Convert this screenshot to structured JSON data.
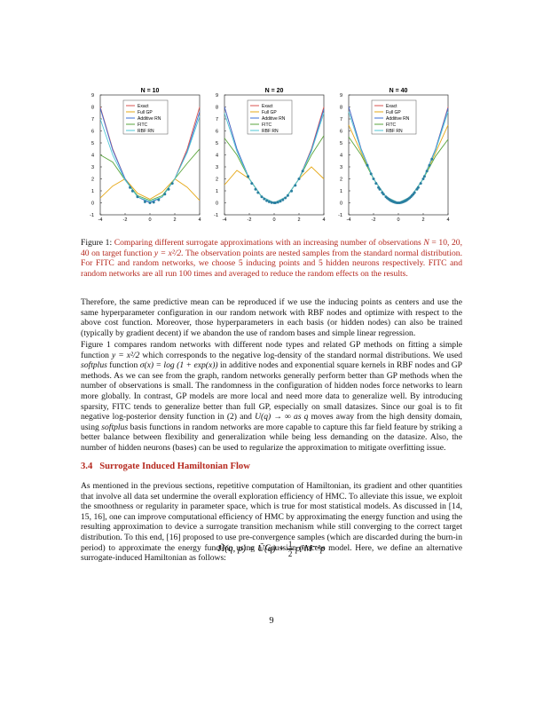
{
  "figure": {
    "panels": [
      {
        "title": "N = 10"
      },
      {
        "title": "N = 20"
      },
      {
        "title": "N = 40"
      }
    ],
    "xticks": [
      "-4",
      "-2",
      "0",
      "2",
      "4"
    ],
    "yticks": [
      "-1",
      "0",
      "1",
      "2",
      "3",
      "4",
      "5",
      "6",
      "7",
      "8",
      "9"
    ],
    "legend": [
      "Exact",
      "Full GP",
      "Additive RN",
      "FITC",
      "RBF RN"
    ],
    "colors": {
      "Exact": "#d9534f",
      "Full GP": "#e6a817",
      "Additive RN": "#3b6fd6",
      "FITC": "#5aa53c",
      "RBF RN": "#4fc7d4",
      "points": "#2a7fa0"
    }
  },
  "chart_data": [
    {
      "type": "line",
      "title": "N = 10",
      "xlim": [
        -4,
        4
      ],
      "ylim": [
        -1,
        9
      ],
      "series": [
        {
          "name": "Exact",
          "x": [
            -4,
            -3,
            -2,
            -1,
            0,
            1,
            2,
            3,
            4
          ],
          "y": [
            8.0,
            4.5,
            2.0,
            0.5,
            0.0,
            0.5,
            2.0,
            4.5,
            8.0
          ]
        },
        {
          "name": "Full GP",
          "x": [
            -4,
            -3,
            -2,
            -1,
            0,
            1,
            2,
            3,
            4
          ],
          "y": [
            0.4,
            1.4,
            2.0,
            0.8,
            0.3,
            0.9,
            2.0,
            1.3,
            0.2
          ]
        },
        {
          "name": "Additive RN",
          "x": [
            -4,
            -3,
            -2,
            -1,
            0,
            1,
            2,
            3,
            4
          ],
          "y": [
            7.9,
            4.4,
            2.0,
            0.5,
            0.0,
            0.5,
            2.0,
            4.3,
            7.6
          ]
        },
        {
          "name": "FITC",
          "x": [
            -4,
            -3,
            -2,
            -1,
            0,
            1,
            2,
            3,
            4
          ],
          "y": [
            4.0,
            3.4,
            1.9,
            0.6,
            0.2,
            0.6,
            2.0,
            3.3,
            4.5
          ]
        },
        {
          "name": "RBF RN",
          "x": [
            -4,
            -3,
            -2,
            -1,
            0,
            1,
            2,
            3,
            4
          ],
          "y": [
            7.0,
            4.0,
            1.9,
            0.5,
            0.1,
            0.5,
            2.0,
            4.2,
            7.2
          ]
        }
      ],
      "points": {
        "x": [
          -1.6,
          -1.4,
          -1.0,
          -0.4,
          0.0,
          0.3,
          0.7,
          1.2,
          1.5,
          1.8
        ],
        "y": [
          1.28,
          0.98,
          0.5,
          0.08,
          0.0,
          0.05,
          0.25,
          0.72,
          1.13,
          1.62
        ]
      }
    },
    {
      "type": "line",
      "title": "N = 20",
      "xlim": [
        -4,
        4
      ],
      "ylim": [
        -1,
        9
      ],
      "series": [
        {
          "name": "Exact",
          "x": [
            -4,
            -3,
            -2,
            -1,
            0,
            1,
            2,
            3,
            4
          ],
          "y": [
            8.0,
            4.5,
            2.0,
            0.5,
            0.0,
            0.5,
            2.0,
            4.5,
            8.0
          ]
        },
        {
          "name": "Full GP",
          "x": [
            -4,
            -3,
            -2,
            -1,
            0,
            1,
            2,
            3,
            4
          ],
          "y": [
            1.5,
            2.7,
            2.0,
            0.5,
            0.0,
            0.5,
            2.0,
            3.0,
            2.0
          ]
        },
        {
          "name": "Additive RN",
          "x": [
            -4,
            -3,
            -2,
            -1,
            0,
            1,
            2,
            3,
            4
          ],
          "y": [
            8.0,
            4.5,
            2.0,
            0.5,
            0.0,
            0.5,
            2.0,
            4.4,
            7.8
          ]
        },
        {
          "name": "FITC",
          "x": [
            -4,
            -3,
            -2,
            -1,
            0,
            1,
            2,
            3,
            4
          ],
          "y": [
            5.4,
            4.0,
            2.0,
            0.5,
            0.0,
            0.5,
            2.0,
            4.0,
            5.6
          ]
        },
        {
          "name": "RBF RN",
          "x": [
            -4,
            -3,
            -2,
            -1,
            0,
            1,
            2,
            3,
            4
          ],
          "y": [
            7.5,
            4.3,
            2.0,
            0.5,
            0.0,
            0.5,
            2.0,
            4.3,
            7.5
          ]
        }
      ],
      "points": {
        "x": [
          -2.1,
          -1.8,
          -1.5,
          -1.3,
          -1.0,
          -0.8,
          -0.6,
          -0.4,
          -0.2,
          0.0,
          0.1,
          0.3,
          0.5,
          0.7,
          0.9,
          1.1,
          1.4,
          1.7,
          2.0,
          2.3
        ],
        "y": [
          2.2,
          1.62,
          1.13,
          0.85,
          0.5,
          0.32,
          0.18,
          0.08,
          0.02,
          0.0,
          0.0,
          0.05,
          0.13,
          0.25,
          0.41,
          0.61,
          0.98,
          1.45,
          2.0,
          2.65
        ]
      }
    },
    {
      "type": "line",
      "title": "N = 40",
      "xlim": [
        -4,
        4
      ],
      "ylim": [
        -1,
        9
      ],
      "series": [
        {
          "name": "Exact",
          "x": [
            -4,
            -3,
            -2,
            -1,
            0,
            1,
            2,
            3,
            4
          ],
          "y": [
            8.0,
            4.5,
            2.0,
            0.5,
            0.0,
            0.5,
            2.0,
            4.5,
            8.0
          ]
        },
        {
          "name": "Full GP",
          "x": [
            -4,
            -3,
            -2,
            -1,
            0,
            1,
            2,
            3,
            4
          ],
          "y": [
            6.5,
            4.2,
            2.0,
            0.5,
            0.0,
            0.5,
            2.0,
            4.2,
            6.5
          ]
        },
        {
          "name": "Additive RN",
          "x": [
            -4,
            -3,
            -2,
            -1,
            0,
            1,
            2,
            3,
            4
          ],
          "y": [
            8.0,
            4.5,
            2.0,
            0.5,
            0.0,
            0.5,
            2.0,
            4.5,
            7.9
          ]
        },
        {
          "name": "FITC",
          "x": [
            -4,
            -3,
            -2,
            -1,
            0,
            1,
            2,
            3,
            4
          ],
          "y": [
            5.5,
            4.0,
            2.0,
            0.5,
            0.0,
            0.5,
            2.0,
            3.9,
            5.3
          ]
        },
        {
          "name": "RBF RN",
          "x": [
            -4,
            -3,
            -2,
            -1,
            0,
            1,
            2,
            3,
            4
          ],
          "y": [
            7.6,
            4.4,
            2.0,
            0.5,
            0.0,
            0.5,
            2.0,
            4.4,
            7.6
          ]
        }
      ],
      "points": {
        "x": [
          -2.5,
          -2.2,
          -2.0,
          -1.8,
          -1.6,
          -1.5,
          -1.3,
          -1.2,
          -1.0,
          -0.9,
          -0.8,
          -0.7,
          -0.6,
          -0.5,
          -0.4,
          -0.3,
          -0.2,
          -0.1,
          0.0,
          0.1,
          0.2,
          0.3,
          0.4,
          0.5,
          0.6,
          0.7,
          0.8,
          0.9,
          1.0,
          1.1,
          1.2,
          1.3,
          1.5,
          1.6,
          1.8,
          2.0,
          2.1,
          2.3,
          2.5,
          2.7
        ],
        "y": [
          3.13,
          2.42,
          2.0,
          1.62,
          1.28,
          1.13,
          0.85,
          0.72,
          0.5,
          0.41,
          0.32,
          0.25,
          0.18,
          0.13,
          0.08,
          0.05,
          0.02,
          0.0,
          0.0,
          0.0,
          0.02,
          0.05,
          0.08,
          0.13,
          0.18,
          0.25,
          0.32,
          0.41,
          0.5,
          0.61,
          0.72,
          0.85,
          1.13,
          1.28,
          1.62,
          2.0,
          2.2,
          2.65,
          3.13,
          3.65
        ]
      }
    }
  ],
  "caption": {
    "label": "Figure 1:",
    "text_1": "Comparing different surrogate approximations with an increasing number of observations",
    "var_N": "N",
    "eq": "=",
    "values": "10, 20, 40",
    "text_2": "on target function",
    "target": "y = x²/2.",
    "text_3": "The observation points are nested samples from the standard normal distribution. For FITC and random networks, we choose 5 inducing points and 5 hidden neurons respectively. FITC and random networks are all run 100 times and averaged to reduce the random effects on the results."
  },
  "paragraphs": {
    "p1": "Therefore, the same predictive mean can be reproduced if we use the inducing points as centers and use the same hyperparameter configuration in our random network with RBF nodes and optimize with respect to the above cost function. Moreover, those hyperparameters in each basis (or hidden nodes) can also be trained (typically by gradient decent) if we abandon the use of random bases and simple linear regression.",
    "p2_a": "Figure 1 compares random networks with different node types and related GP methods on fitting a simple function",
    "p2_func": "y = x²/2",
    "p2_b": "which corresponds to the negative log-density of the standard normal distributions. We used",
    "p2_softplus": "softplus",
    "p2_c": "function",
    "p2_sigma": "σ(x) = log (1 + exp(x))",
    "p2_d": "in additive nodes and exponential square kernels in RBF nodes and GP methods. As we can see from the graph, random networks generally perform better than GP methods when the number of observations is small. The randomness in the configuration of hidden nodes force networks to learn more globally. In contrast, GP models are more local and need more data to generalize well. By introducing sparsity, FITC tends to generalize better than full GP, especially on small datasizes. Since our goal is to fit negative log-posterior density function in (2) and",
    "p2_uq": "U(q) → ∞ as q",
    "p2_e": "moves away from the high density domain, using",
    "p2_softplus2": "softplus",
    "p2_f": "basis functions in random networks are more capable to capture this far field feature by striking a better balance between flexibility and generalization while being less demanding on the datasize. Also, the number of hidden neurons (bases) can be used to regularize the approximation to mitigate overfitting issue.",
    "p3": "As mentioned in the previous sections, repetitive computation of Hamiltonian, its gradient and other quantities that involve all data set undermine the overall exploration efficiency of HMC. To alleviate this issue, we exploit the smoothness or regularity in parameter space, which is true for most statistical models. As discussed in [14, 15, 16], one can improve computational efficiency of HMC by approximating the energy function and using the resulting approximation to device a surrogate transition mechanism while still converging to the correct target distribution. To this end, [16] proposed to use pre-convergence samples (which are discarded during the burn-in period) to approximate the energy function using a Gaussian process model. Here, we define an alternative surrogate-induced Hamiltonian as follows:"
  },
  "section": {
    "number": "3.4",
    "title": "Surrogate Induced Hamiltonian Flow"
  },
  "equation": {
    "lhs": "H̃(q, p) = Ũ(q) + ",
    "frac_num": "1",
    "frac_den": "2",
    "rhs": "pᵀM⁻¹p"
  },
  "page_number": "9"
}
